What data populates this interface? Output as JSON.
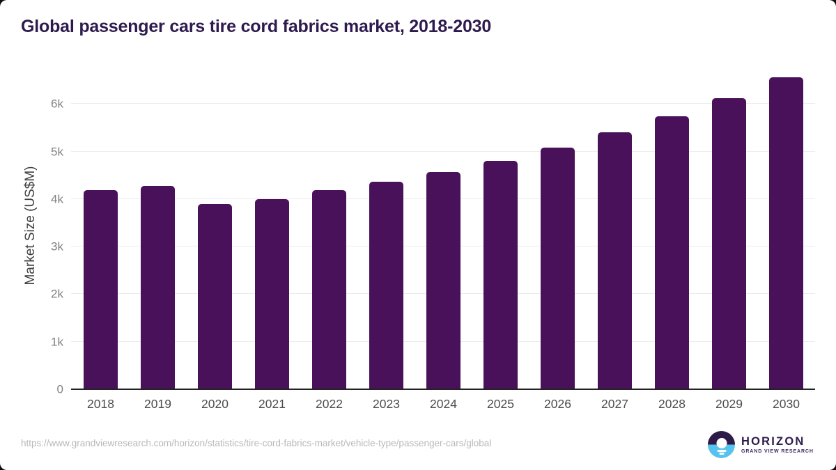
{
  "chart_data": {
    "type": "bar",
    "title": "Global passenger cars tire cord fabrics market, 2018-2030",
    "ylabel": "Market Size (US$M)",
    "xlabel": "",
    "categories": [
      "2018",
      "2019",
      "2020",
      "2021",
      "2022",
      "2023",
      "2024",
      "2025",
      "2026",
      "2027",
      "2028",
      "2029",
      "2030"
    ],
    "values": [
      4190,
      4280,
      3900,
      4000,
      4185,
      4360,
      4575,
      4805,
      5085,
      5400,
      5735,
      6120,
      6560
    ],
    "ylim": [
      0,
      6800
    ],
    "ytick_labels": [
      "0",
      "1k",
      "2k",
      "3k",
      "4k",
      "5k",
      "6k"
    ],
    "ytick_values": [
      0,
      1000,
      2000,
      3000,
      4000,
      5000,
      6000
    ],
    "grid": true,
    "legend": "none",
    "bar_color": "#481159"
  },
  "footer": {
    "source_url": "https://www.grandviewresearch.com/horizon/statistics/tire-cord-fabrics-market/vehicle-type/passenger-cars/global",
    "logo": {
      "title": "HORIZON",
      "subtitle": "GRAND VIEW RESEARCH",
      "icon": "horizon-sunrise-icon"
    }
  },
  "colors": {
    "bar": "#481159",
    "title_text": "#2e1a4e",
    "axis_label": "#3f3f3f",
    "ytick_text": "#828282",
    "xtick_text": "#4d4d4d",
    "gridline": "#ececec",
    "axis_line": "#232323",
    "url_text": "#b8b8b8",
    "logo_purple": "#2e1a47",
    "logo_blue": "#56c3ef"
  }
}
